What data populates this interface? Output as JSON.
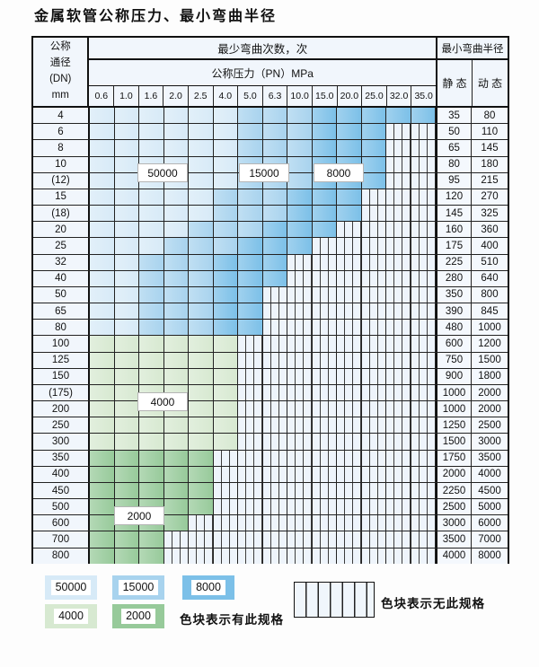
{
  "title": "金属软管公称压力、最小弯曲半径",
  "colors": {
    "blue_50000": "#d7eaf7",
    "blue_15000": "#a8d3ee",
    "blue_8000": "#7cc0e8",
    "green_4000": "#d7e9d1",
    "green_2000": "#97ca9a",
    "hatch_bg": "#eef4fb",
    "grid_line": "#222222"
  },
  "cell_legend": {
    "b1": "50000",
    "b2": "15000",
    "b3": "8000",
    "g1": "4000",
    "g2": "2000",
    "x": "无此规格"
  },
  "table": {
    "dn_header_lines": [
      "公称",
      "通径",
      "(DN)",
      "mm"
    ],
    "bend_cycles_header": "最少弯曲次数，次",
    "pressure_header": "公称压力（PN）MPa",
    "radius_header": "最小弯曲半径",
    "static_label": "静 态",
    "dynamic_label": "动 态",
    "pressures": [
      "0.6",
      "1.0",
      "1.6",
      "2.0",
      "2.5",
      "4.0",
      "5.0",
      "6.3",
      "10.0",
      "15.0",
      "20.0",
      "25.0",
      "32.0",
      "35.0"
    ],
    "rows": [
      {
        "dn": "4",
        "static": "35",
        "dynamic": "80",
        "cells": [
          "b1",
          "b1",
          "b1",
          "b1",
          "b1",
          "b1",
          "b2",
          "b2",
          "b2",
          "b3",
          "b3",
          "b3",
          "b3",
          "b3"
        ]
      },
      {
        "dn": "6",
        "static": "50",
        "dynamic": "110",
        "cells": [
          "b1",
          "b1",
          "b1",
          "b1",
          "b1",
          "b1",
          "b2",
          "b2",
          "b2",
          "b3",
          "b3",
          "b3",
          "x",
          "x"
        ]
      },
      {
        "dn": "8",
        "static": "65",
        "dynamic": "145",
        "cells": [
          "b1",
          "b1",
          "b1",
          "b1",
          "b1",
          "b1",
          "b2",
          "b2",
          "b2",
          "b3",
          "b3",
          "b3",
          "x",
          "x"
        ]
      },
      {
        "dn": "10",
        "static": "80",
        "dynamic": "180",
        "cells": [
          "b1",
          "b1",
          "b1",
          "b1",
          "b1",
          "b1",
          "b2",
          "b2",
          "b2",
          "b3",
          "b3",
          "b3",
          "x",
          "x"
        ]
      },
      {
        "dn": "(12)",
        "static": "95",
        "dynamic": "215",
        "cells": [
          "b1",
          "b1",
          "b1",
          "b1",
          "b1",
          "b1",
          "b2",
          "b2",
          "b2",
          "b3",
          "b3",
          "b3",
          "x",
          "x"
        ]
      },
      {
        "dn": "15",
        "static": "120",
        "dynamic": "270",
        "cells": [
          "b1",
          "b1",
          "b1",
          "b1",
          "b1",
          "b2",
          "b2",
          "b2",
          "b3",
          "b3",
          "b3",
          "x",
          "x",
          "x"
        ]
      },
      {
        "dn": "(18)",
        "static": "145",
        "dynamic": "325",
        "cells": [
          "b1",
          "b1",
          "b1",
          "b1",
          "b1",
          "b2",
          "b2",
          "b2",
          "b3",
          "b3",
          "b3",
          "x",
          "x",
          "x"
        ]
      },
      {
        "dn": "20",
        "static": "160",
        "dynamic": "360",
        "cells": [
          "b1",
          "b1",
          "b1",
          "b1",
          "b2",
          "b2",
          "b2",
          "b3",
          "b3",
          "b3",
          "x",
          "x",
          "x",
          "x"
        ]
      },
      {
        "dn": "25",
        "static": "175",
        "dynamic": "400",
        "cells": [
          "b1",
          "b1",
          "b1",
          "b2",
          "b2",
          "b2",
          "b3",
          "b3",
          "b3",
          "x",
          "x",
          "x",
          "x",
          "x"
        ]
      },
      {
        "dn": "32",
        "static": "225",
        "dynamic": "510",
        "cells": [
          "b1",
          "b1",
          "b2",
          "b2",
          "b2",
          "b3",
          "b3",
          "b3",
          "x",
          "x",
          "x",
          "x",
          "x",
          "x"
        ]
      },
      {
        "dn": "40",
        "static": "280",
        "dynamic": "640",
        "cells": [
          "b1",
          "b1",
          "b2",
          "b2",
          "b2",
          "b3",
          "b3",
          "b3",
          "x",
          "x",
          "x",
          "x",
          "x",
          "x"
        ]
      },
      {
        "dn": "50",
        "static": "350",
        "dynamic": "800",
        "cells": [
          "b1",
          "b1",
          "b2",
          "b2",
          "b2",
          "b3",
          "b3",
          "x",
          "x",
          "x",
          "x",
          "x",
          "x",
          "x"
        ]
      },
      {
        "dn": "65",
        "static": "390",
        "dynamic": "845",
        "cells": [
          "b1",
          "b1",
          "b2",
          "b2",
          "b2",
          "b3",
          "b3",
          "x",
          "x",
          "x",
          "x",
          "x",
          "x",
          "x"
        ]
      },
      {
        "dn": "80",
        "static": "480",
        "dynamic": "1000",
        "cells": [
          "b1",
          "b1",
          "b2",
          "b2",
          "b2",
          "b3",
          "b3",
          "x",
          "x",
          "x",
          "x",
          "x",
          "x",
          "x"
        ]
      },
      {
        "dn": "100",
        "static": "600",
        "dynamic": "1200",
        "cells": [
          "g1",
          "g1",
          "g1",
          "g1",
          "g1",
          "g1",
          "x",
          "x",
          "x",
          "x",
          "x",
          "x",
          "x",
          "x"
        ]
      },
      {
        "dn": "125",
        "static": "750",
        "dynamic": "1500",
        "cells": [
          "g1",
          "g1",
          "g1",
          "g1",
          "g1",
          "g1",
          "x",
          "x",
          "x",
          "x",
          "x",
          "x",
          "x",
          "x"
        ]
      },
      {
        "dn": "150",
        "static": "900",
        "dynamic": "1800",
        "cells": [
          "g1",
          "g1",
          "g1",
          "g1",
          "g1",
          "g1",
          "x",
          "x",
          "x",
          "x",
          "x",
          "x",
          "x",
          "x"
        ]
      },
      {
        "dn": "(175)",
        "static": "1000",
        "dynamic": "2000",
        "cells": [
          "g1",
          "g1",
          "g1",
          "g1",
          "g1",
          "g1",
          "x",
          "x",
          "x",
          "x",
          "x",
          "x",
          "x",
          "x"
        ]
      },
      {
        "dn": "200",
        "static": "1000",
        "dynamic": "2000",
        "cells": [
          "g1",
          "g1",
          "g1",
          "g1",
          "g1",
          "g1",
          "x",
          "x",
          "x",
          "x",
          "x",
          "x",
          "x",
          "x"
        ]
      },
      {
        "dn": "250",
        "static": "1250",
        "dynamic": "2500",
        "cells": [
          "g1",
          "g1",
          "g1",
          "g1",
          "g1",
          "g1",
          "x",
          "x",
          "x",
          "x",
          "x",
          "x",
          "x",
          "x"
        ]
      },
      {
        "dn": "300",
        "static": "1500",
        "dynamic": "3000",
        "cells": [
          "g1",
          "g1",
          "g1",
          "g1",
          "g1",
          "g1",
          "x",
          "x",
          "x",
          "x",
          "x",
          "x",
          "x",
          "x"
        ]
      },
      {
        "dn": "350",
        "static": "1750",
        "dynamic": "3500",
        "cells": [
          "g2",
          "g2",
          "g2",
          "g2",
          "g2",
          "x",
          "x",
          "x",
          "x",
          "x",
          "x",
          "x",
          "x",
          "x"
        ]
      },
      {
        "dn": "400",
        "static": "2000",
        "dynamic": "4000",
        "cells": [
          "g2",
          "g2",
          "g2",
          "g2",
          "g2",
          "x",
          "x",
          "x",
          "x",
          "x",
          "x",
          "x",
          "x",
          "x"
        ]
      },
      {
        "dn": "450",
        "static": "2250",
        "dynamic": "4500",
        "cells": [
          "g2",
          "g2",
          "g2",
          "g2",
          "g2",
          "x",
          "x",
          "x",
          "x",
          "x",
          "x",
          "x",
          "x",
          "x"
        ]
      },
      {
        "dn": "500",
        "static": "2500",
        "dynamic": "5000",
        "cells": [
          "g2",
          "g2",
          "g2",
          "g2",
          "g2",
          "x",
          "x",
          "x",
          "x",
          "x",
          "x",
          "x",
          "x",
          "x"
        ]
      },
      {
        "dn": "600",
        "static": "3000",
        "dynamic": "6000",
        "cells": [
          "g2",
          "g2",
          "g2",
          "g2",
          "x",
          "x",
          "x",
          "x",
          "x",
          "x",
          "x",
          "x",
          "x",
          "x"
        ]
      },
      {
        "dn": "700",
        "static": "3500",
        "dynamic": "7000",
        "cells": [
          "g2",
          "g2",
          "g2",
          "x",
          "x",
          "x",
          "x",
          "x",
          "x",
          "x",
          "x",
          "x",
          "x",
          "x"
        ]
      },
      {
        "dn": "800",
        "static": "4000",
        "dynamic": "8000",
        "cells": [
          "g2",
          "g2",
          "g2",
          "x",
          "x",
          "x",
          "x",
          "x",
          "x",
          "x",
          "x",
          "x",
          "x",
          "x"
        ]
      }
    ]
  },
  "overlays": [
    {
      "label": "50000"
    },
    {
      "label": "15000"
    },
    {
      "label": "8000"
    },
    {
      "label": "4000"
    },
    {
      "label": "2000"
    }
  ],
  "legend": {
    "items": [
      {
        "label": "50000"
      },
      {
        "label": "15000"
      },
      {
        "label": "8000"
      },
      {
        "label": "4000"
      },
      {
        "label": "2000"
      }
    ],
    "has_spec_note": "色块表示有此规格",
    "no_spec_note": "色块表示无此规格"
  }
}
